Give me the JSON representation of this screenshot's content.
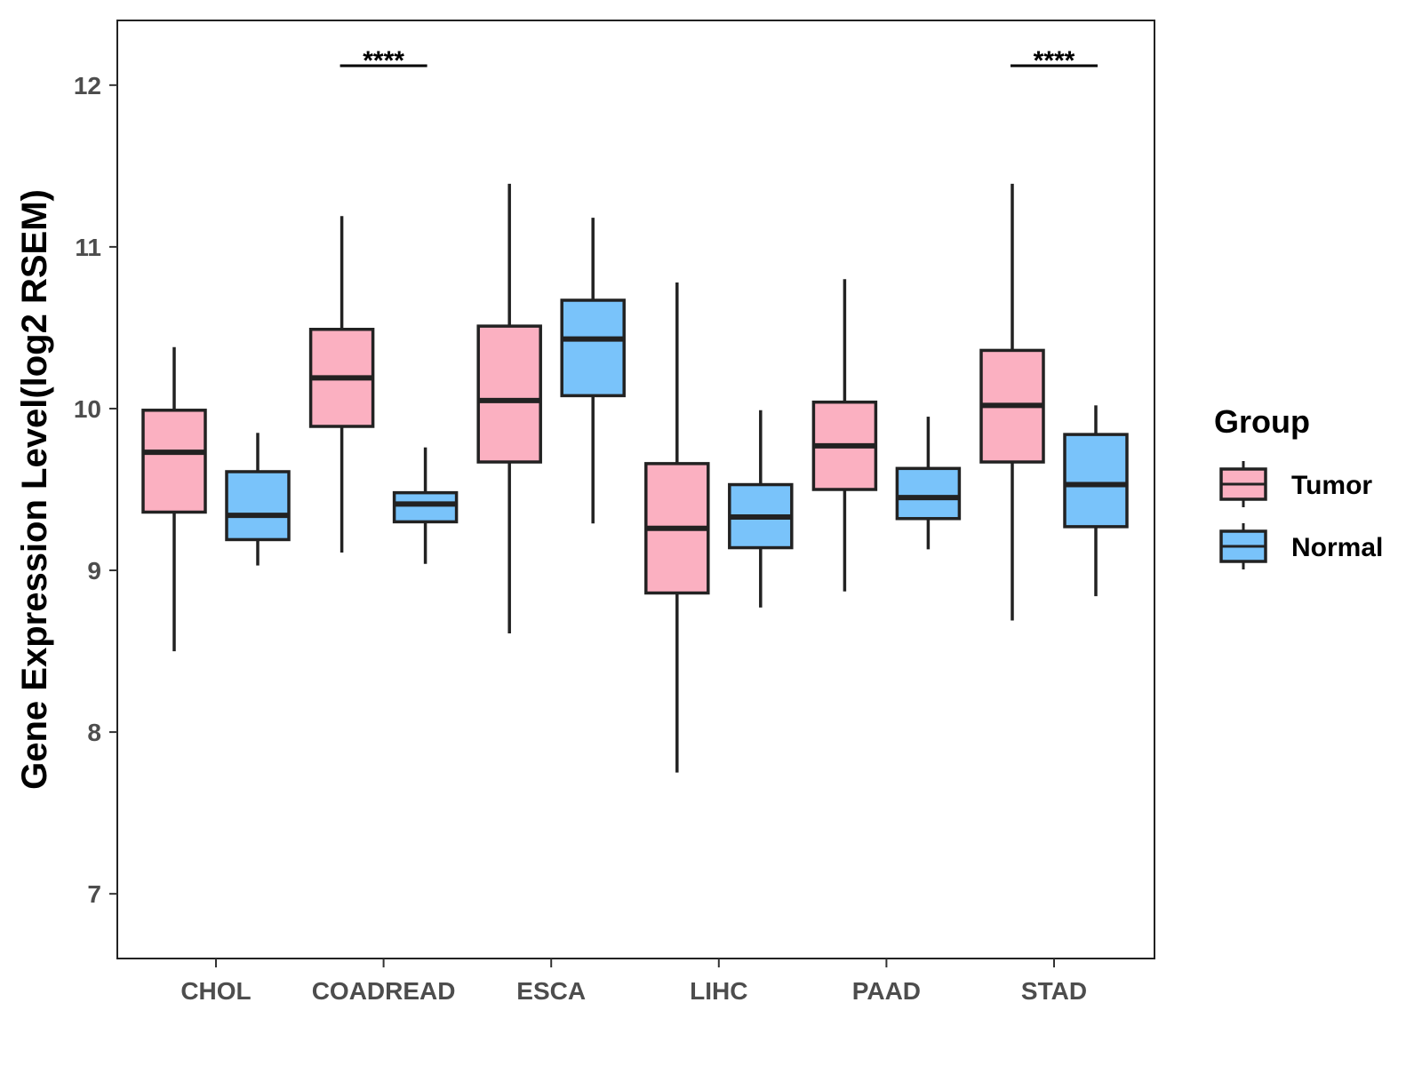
{
  "chart_data": {
    "type": "boxplot",
    "title": "",
    "xlabel": "",
    "ylabel": "Gene Expression Level(log2 RSEM)",
    "ylim": [
      6.6,
      12.4
    ],
    "yticks": [
      7,
      8,
      9,
      10,
      11,
      12
    ],
    "grid": false,
    "legend_title": "Group",
    "legend_position": "right",
    "categories": [
      "CHOL",
      "COADREAD",
      "ESCA",
      "LIHC",
      "PAAD",
      "STAD"
    ],
    "series": [
      {
        "name": "Tumor",
        "color": "#FBB0C1",
        "boxes": [
          {
            "min": 8.5,
            "q1": 9.36,
            "median": 9.73,
            "q3": 9.99,
            "max": 10.38
          },
          {
            "min": 9.11,
            "q1": 9.89,
            "median": 10.19,
            "q3": 10.49,
            "max": 11.19
          },
          {
            "min": 8.61,
            "q1": 9.67,
            "median": 10.05,
            "q3": 10.51,
            "max": 11.39
          },
          {
            "min": 7.75,
            "q1": 8.86,
            "median": 9.26,
            "q3": 9.66,
            "max": 10.78
          },
          {
            "min": 8.87,
            "q1": 9.5,
            "median": 9.77,
            "q3": 10.04,
            "max": 10.8
          },
          {
            "min": 8.69,
            "q1": 9.67,
            "median": 10.02,
            "q3": 10.36,
            "max": 11.39
          }
        ]
      },
      {
        "name": "Normal",
        "color": "#79C3FA",
        "boxes": [
          {
            "min": 9.03,
            "q1": 9.19,
            "median": 9.34,
            "q3": 9.61,
            "max": 9.85
          },
          {
            "min": 9.04,
            "q1": 9.3,
            "median": 9.41,
            "q3": 9.48,
            "max": 9.76
          },
          {
            "min": 9.29,
            "q1": 10.08,
            "median": 10.43,
            "q3": 10.67,
            "max": 11.18
          },
          {
            "min": 8.77,
            "q1": 9.14,
            "median": 9.33,
            "q3": 9.53,
            "max": 9.99
          },
          {
            "min": 9.13,
            "q1": 9.32,
            "median": 9.45,
            "q3": 9.63,
            "max": 9.95
          },
          {
            "min": 8.84,
            "q1": 9.27,
            "median": 9.53,
            "q3": 9.84,
            "max": 10.02
          }
        ]
      }
    ],
    "annotations": [
      {
        "category": "COADREAD",
        "label": "****",
        "y": 12.12
      },
      {
        "category": "STAD",
        "label": "****",
        "y": 12.12
      }
    ]
  },
  "colors": {
    "tumor": "#FBB0C1",
    "normal": "#79C3FA",
    "outline": "#222222"
  }
}
